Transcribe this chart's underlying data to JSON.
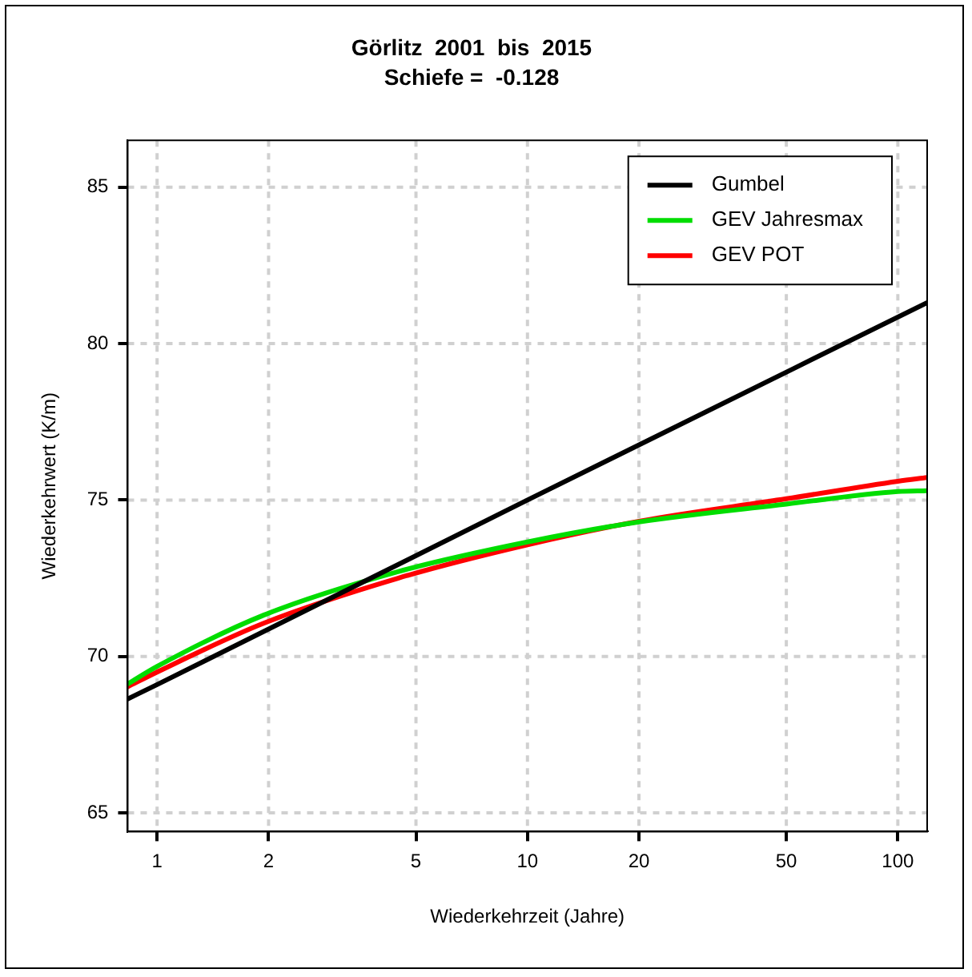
{
  "chart_data": {
    "type": "line",
    "title": "Görlitz  2001  bis  2015",
    "subtitle": "Schiefe =  -0.128",
    "xlabel": "Wiederkehrzeit (Jahre)",
    "ylabel": "Wiederkehrwert (K/m)",
    "log": "x",
    "xlim": [
      0.833,
      120
    ],
    "xticks": [
      1,
      2,
      5,
      10,
      20,
      50,
      100
    ],
    "ylim": [
      64.4,
      86.5
    ],
    "yticks": [
      65,
      70,
      75,
      80,
      85
    ],
    "grid": true,
    "legend": "top right",
    "marker": "none",
    "line_style": "solid",
    "series": [
      {
        "name": "Gumbel",
        "color": "#000000",
        "x": [
          0.833,
          1,
          10,
          120
        ],
        "values": [
          68.64,
          69.1,
          75.0,
          81.31
        ]
      },
      {
        "name": "GEV Jahresmax",
        "color": "#00dd00",
        "x": [
          0.833,
          1,
          1.94,
          4.47,
          10,
          20,
          50,
          100,
          120
        ],
        "values": [
          69.12,
          69.68,
          71.32,
          72.71,
          73.66,
          74.3,
          74.87,
          75.27,
          75.3
        ]
      },
      {
        "name": "GEV POT",
        "color": "#ff0000",
        "x": [
          0.833,
          1,
          1.94,
          4.47,
          10,
          20,
          50,
          100,
          120
        ],
        "values": [
          69.03,
          69.5,
          71.06,
          72.5,
          73.57,
          74.32,
          75.04,
          75.6,
          75.72
        ]
      }
    ]
  }
}
